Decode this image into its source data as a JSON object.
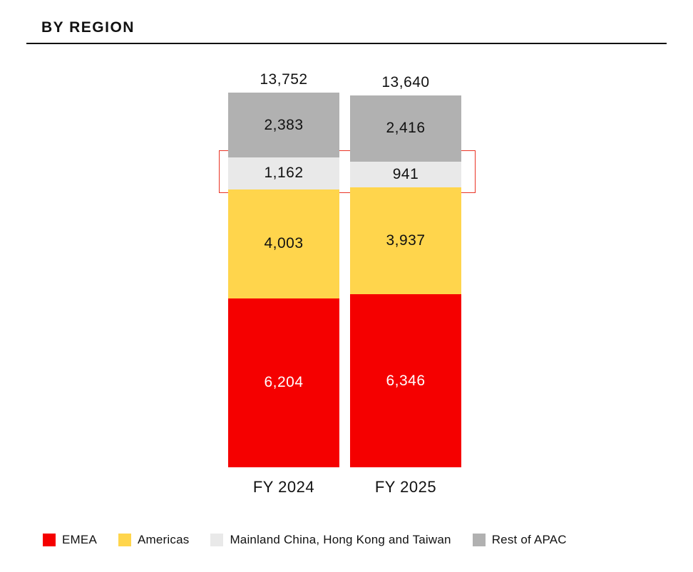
{
  "title": "BY REGION",
  "chart_data": {
    "type": "bar",
    "stacked": true,
    "grid": false,
    "legend_position": "bottom",
    "categories": [
      "FY 2024",
      "FY 2025"
    ],
    "totals": [
      13752,
      13640
    ],
    "series": [
      {
        "name": "EMEA",
        "color": "#F50000",
        "label_color": "#FFFFFF",
        "values": [
          6204,
          6346
        ]
      },
      {
        "name": "Americas",
        "color": "#FFD54C",
        "label_color": "#111111",
        "values": [
          4003,
          3937
        ]
      },
      {
        "name": "Mainland China, Hong Kong and Taiwan",
        "color": "#E9E9E9",
        "label_color": "#111111",
        "values": [
          1162,
          941
        ]
      },
      {
        "name": "Rest of APAC",
        "color": "#B1B1B1",
        "label_color": "#111111",
        "values": [
          2383,
          2416
        ]
      }
    ],
    "highlight": {
      "series": "Mainland China, Hong Kong and Taiwan",
      "border_color": "#EA3325"
    }
  }
}
